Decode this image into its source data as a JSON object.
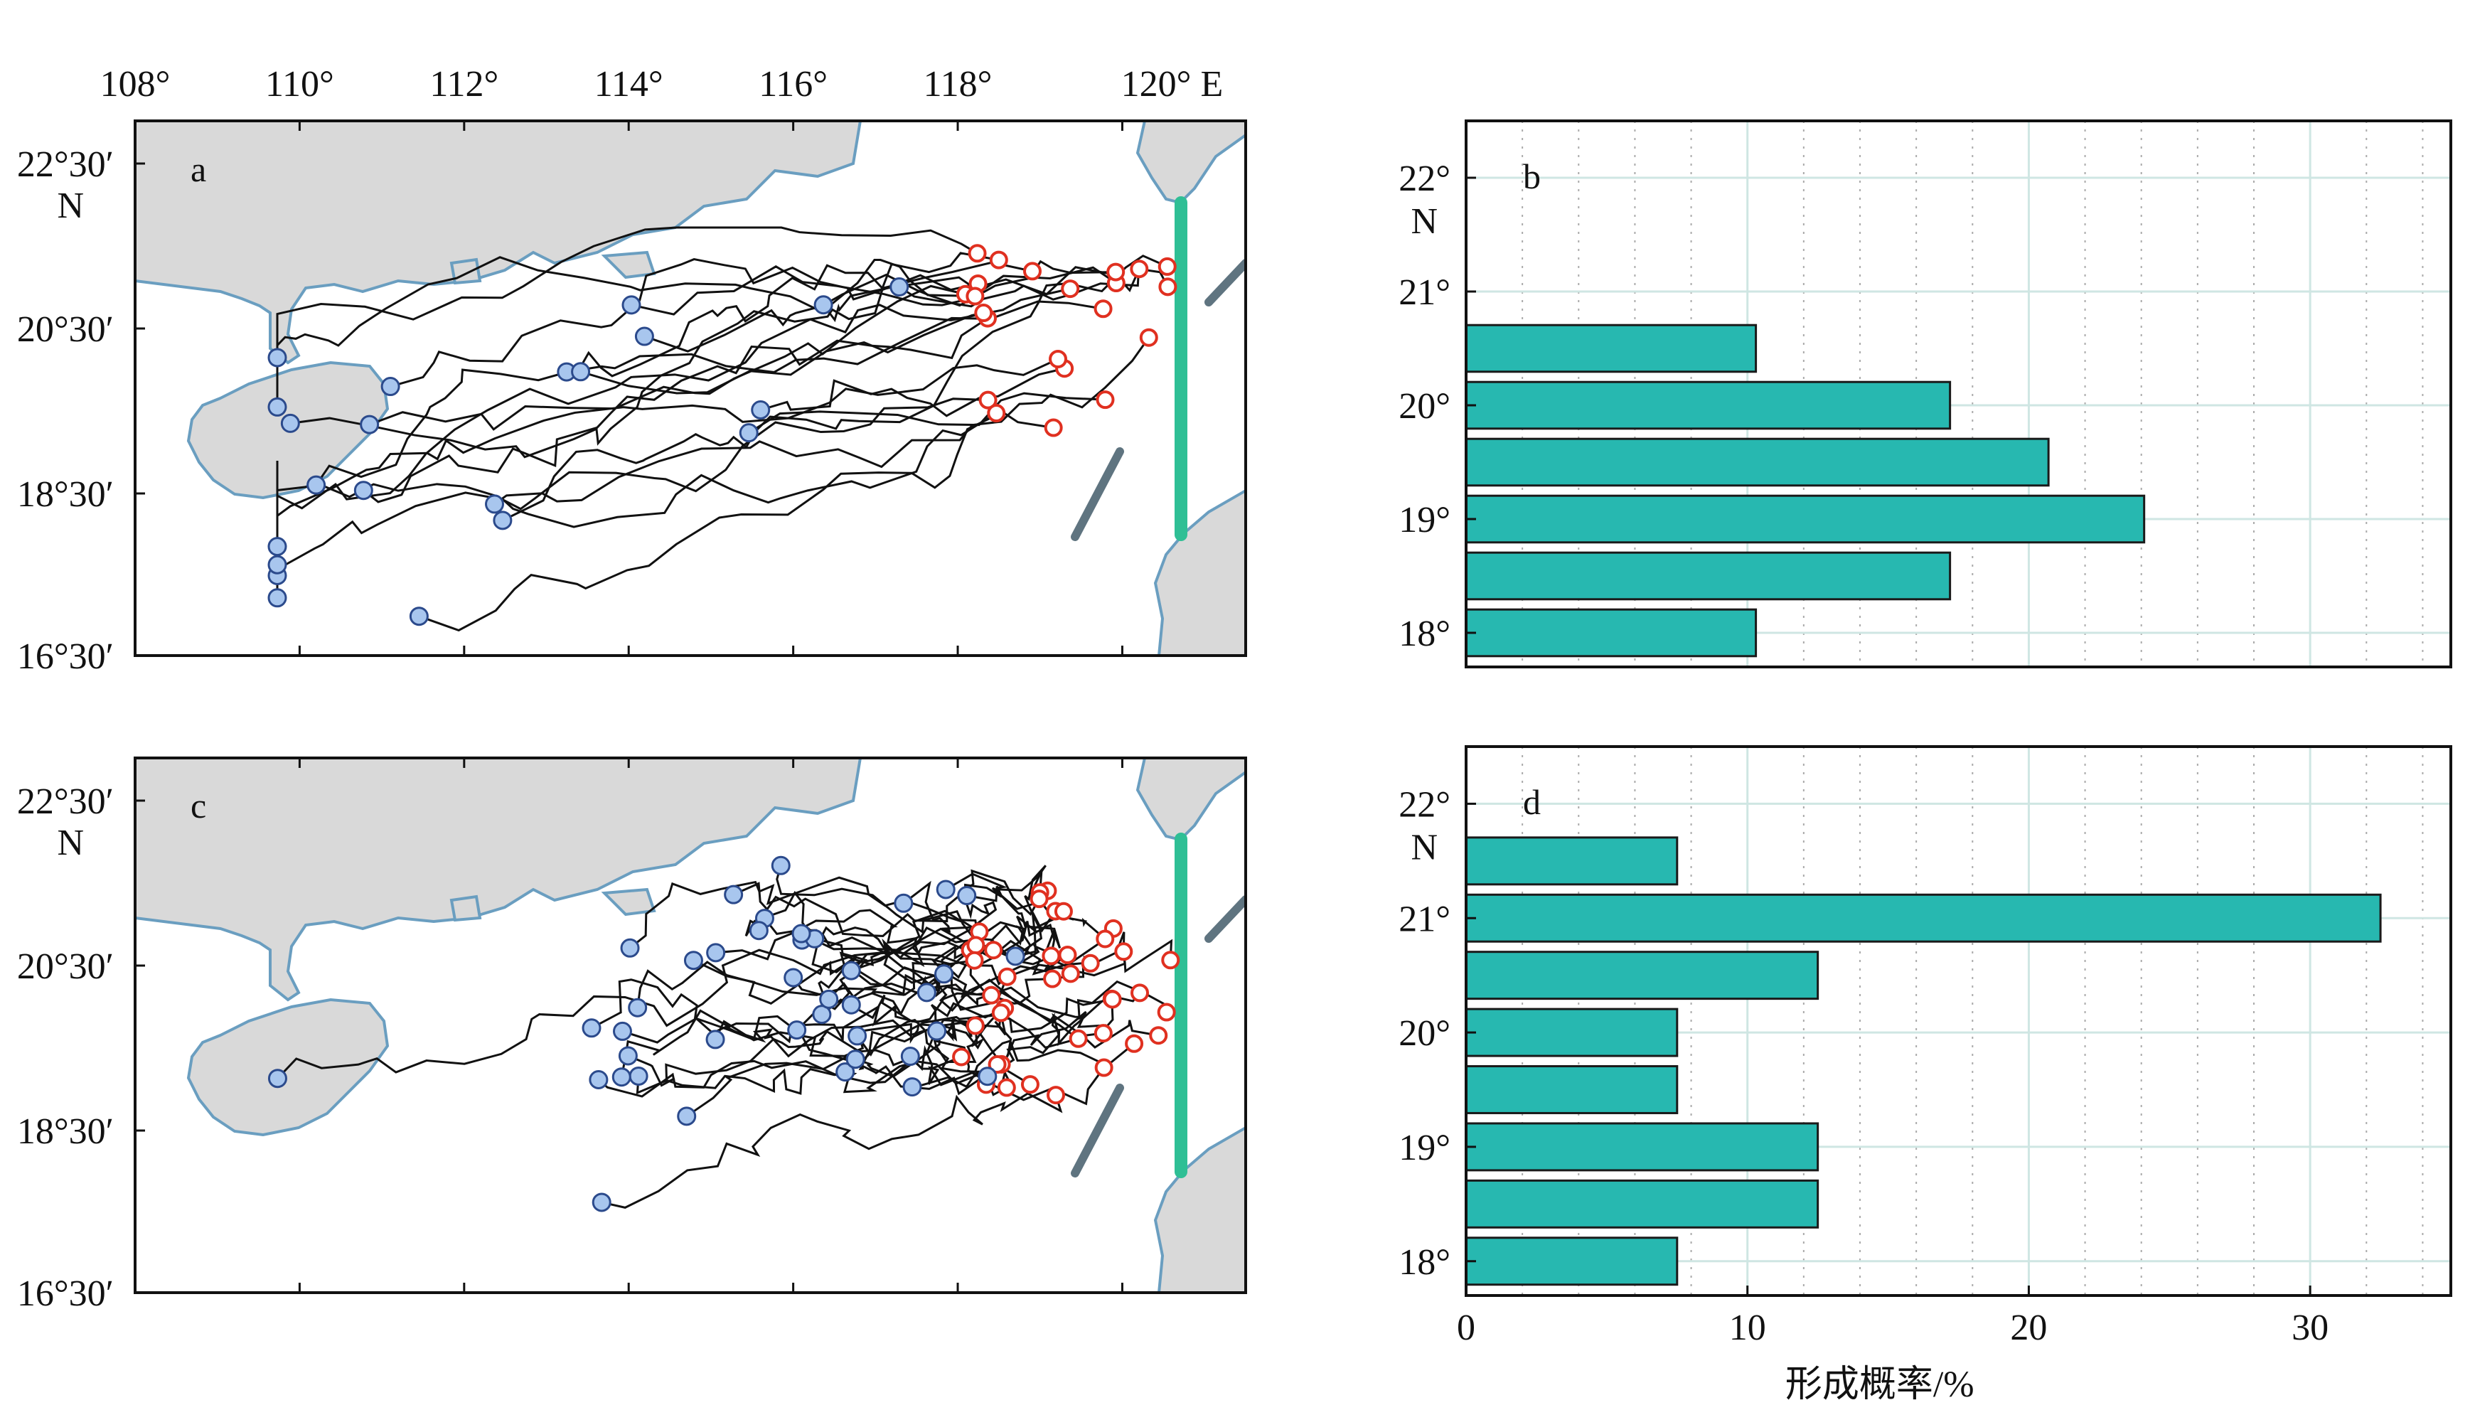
{
  "colors": {
    "land": "#d9d9d9",
    "coast": "#6a9ec0",
    "track": "#111111",
    "start_marker": "#a8c6ee",
    "start_edge": "#2b4a8c",
    "end_marker_edge": "#e03020",
    "section_line": "#2fbf95",
    "ridge": "#5f7480",
    "bar_fill": "#27b8b0",
    "bar_edge": "#1a1a1a",
    "grid_solid": "#cfe6e3",
    "grid_dotted": "#aaaaaa"
  },
  "maps": [
    {
      "letter": "a",
      "x_tick_labels": [
        "108°",
        "110°",
        "112°",
        "114°",
        "116°",
        "118°",
        "120° E"
      ],
      "y_tick_labels": [
        "22°30′\nN",
        "20°30′",
        "18°30′",
        "16°30′"
      ],
      "shows_top_axis_labels": true
    },
    {
      "letter": "c",
      "x_tick_labels": [],
      "y_tick_labels": [
        "22°30′\nN",
        "20°30′",
        "18°30′",
        "16°30′"
      ],
      "shows_top_axis_labels": false
    }
  ],
  "chart_data": [
    {
      "panel": "b",
      "type": "bar",
      "orientation": "horizontal",
      "categories": [
        "18°",
        "18.5°",
        "19°",
        "19.5°",
        "20°",
        "20.5°"
      ],
      "y_values": [
        18,
        18.5,
        19,
        19.5,
        20,
        20.5
      ],
      "values": [
        10.3,
        17.2,
        24.1,
        20.7,
        17.2,
        10.3
      ],
      "y_tick_labels": [
        "18°",
        "19°",
        "20°",
        "21°",
        "22°\nN"
      ],
      "y_ticks": [
        18,
        19,
        20,
        21,
        22
      ],
      "xlim": [
        0,
        35
      ],
      "ylim": [
        17.7,
        22.5
      ],
      "grid": true
    },
    {
      "panel": "d",
      "type": "bar",
      "orientation": "horizontal",
      "categories": [
        "18°",
        "18.5°",
        "19°",
        "19.5°",
        "20°",
        "20.5°",
        "21°",
        "21.5°"
      ],
      "y_values": [
        18,
        18.5,
        19,
        19.5,
        20,
        20.5,
        21,
        21.5
      ],
      "values": [
        7.5,
        12.5,
        12.5,
        7.5,
        7.5,
        12.5,
        32.5,
        7.5
      ],
      "y_tick_labels": [
        "18°",
        "19°",
        "20°",
        "21°",
        "22°\nN"
      ],
      "y_ticks": [
        18,
        19,
        20,
        21,
        22
      ],
      "x_ticks": [
        0,
        10,
        20,
        30
      ],
      "x_tick_labels": [
        "0",
        "10",
        "20",
        "30"
      ],
      "xlabel": "形成概率/%",
      "xlim": [
        0,
        35
      ],
      "ylim": [
        17.7,
        22.5
      ],
      "grid": true
    }
  ]
}
